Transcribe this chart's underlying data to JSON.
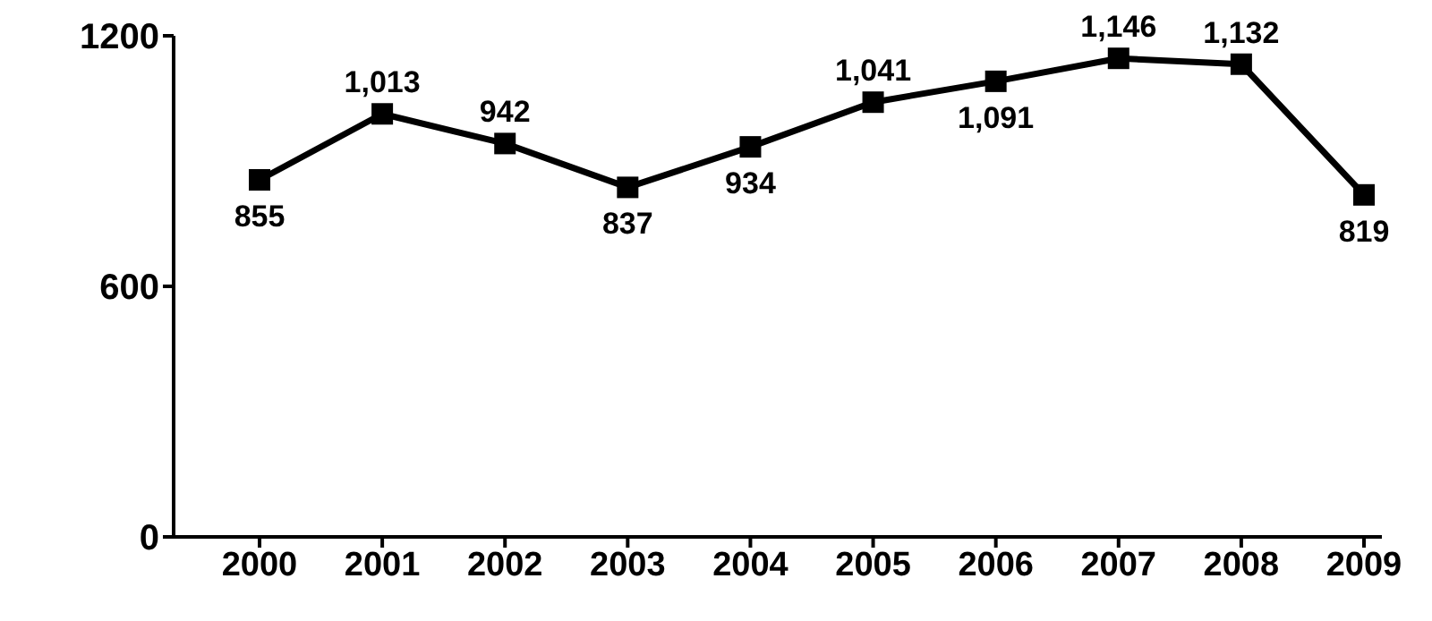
{
  "chart_data": {
    "type": "line",
    "categories": [
      "2000",
      "2001",
      "2002",
      "2003",
      "2004",
      "2005",
      "2006",
      "2007",
      "2008",
      "2009"
    ],
    "series": [
      {
        "color": "#000000",
        "values": [
          855,
          1013,
          942,
          837,
          934,
          1041,
          1091,
          1146,
          1132,
          819
        ],
        "value_labels": [
          "855",
          "1,013",
          "942",
          "837",
          "934",
          "1,041",
          "1,091",
          "1,146",
          "1,132",
          "819"
        ]
      }
    ],
    "ylim": [
      0,
      1200
    ],
    "yticks": [
      0,
      600,
      1200
    ],
    "grid": false,
    "legend": false,
    "marker": "square",
    "line_style": "solid"
  }
}
